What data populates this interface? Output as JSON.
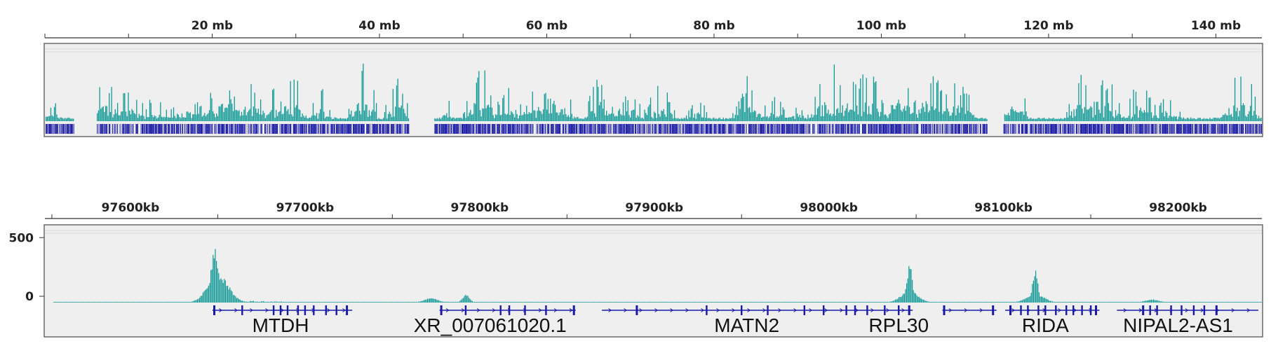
{
  "colors": {
    "signal": "#139a96",
    "gene": "#1a1aa6",
    "panel_bg": "#efefef",
    "axis": "#333333"
  },
  "chart_data": [
    {
      "type": "area",
      "view": "chromosome-overview",
      "x_unit": "mb",
      "xlim": [
        0,
        145.5
      ],
      "tick_labels": [
        "20 mb",
        "40 mb",
        "60 mb",
        "80 mb",
        "100 mb",
        "120 mb",
        "140 mb"
      ],
      "tick_values": [
        20,
        40,
        60,
        80,
        100,
        120,
        140
      ],
      "minor_tick_values": [
        0,
        10,
        30,
        50,
        70,
        90,
        110,
        130
      ],
      "gaps_mb": [
        [
          3.5,
          6.2
        ],
        [
          43.5,
          46.5
        ],
        [
          112.6,
          114.6
        ]
      ],
      "clusters": [
        [
          1,
          3,
          0.35
        ],
        [
          7,
          4,
          0.8
        ],
        [
          10,
          5,
          0.55
        ],
        [
          13,
          4,
          0.4
        ],
        [
          17,
          5,
          0.5
        ],
        [
          21,
          5,
          0.75
        ],
        [
          24,
          5,
          0.85
        ],
        [
          27,
          4,
          0.65
        ],
        [
          29.5,
          4,
          0.9
        ],
        [
          33,
          3,
          0.55
        ],
        [
          38,
          4,
          0.95
        ],
        [
          42,
          3,
          0.9
        ],
        [
          48,
          2,
          0.45
        ],
        [
          52,
          5,
          0.95
        ],
        [
          55.5,
          4,
          0.65
        ],
        [
          59,
          5,
          0.65
        ],
        [
          62,
          4,
          0.55
        ],
        [
          67,
          5,
          0.95
        ],
        [
          70,
          4,
          0.55
        ],
        [
          73.5,
          4,
          0.65
        ],
        [
          78,
          3,
          0.4
        ],
        [
          84,
          4,
          0.75
        ],
        [
          87,
          4,
          0.45
        ],
        [
          90,
          3,
          0.35
        ],
        [
          94,
          6,
          0.95
        ],
        [
          98,
          6,
          0.9
        ],
        [
          102,
          5,
          0.9
        ],
        [
          105.5,
          5,
          0.95
        ],
        [
          109,
          5,
          0.75
        ],
        [
          116,
          4,
          0.75
        ],
        [
          124,
          4,
          0.95
        ],
        [
          127,
          4,
          0.8
        ],
        [
          131,
          4,
          0.75
        ],
        [
          134,
          4,
          0.5
        ],
        [
          143,
          5,
          0.95
        ]
      ]
    },
    {
      "type": "area",
      "view": "locus-zoom",
      "x_unit": "kb",
      "xlim": [
        97551,
        98248
      ],
      "tick_labels": [
        "97600kb",
        "97700kb",
        "97800kb",
        "97900kb",
        "98000kb",
        "98100kb",
        "98200kb"
      ],
      "tick_values": [
        97600,
        97700,
        97800,
        97900,
        98000,
        98100,
        98200
      ],
      "minor_tick_values": [
        97555,
        97650,
        97750,
        97850,
        97950,
        98050,
        98150
      ],
      "y_tick_labels": [
        "500",
        "0"
      ],
      "y_tick_values": [
        500,
        0
      ],
      "ylim": [
        0,
        550
      ],
      "peaks": [
        {
          "x": 97648,
          "height": 425,
          "width": 2.2
        },
        {
          "x": 97650,
          "height": 220,
          "width": 6
        },
        {
          "x": 97772,
          "height": 35,
          "width": 4
        },
        {
          "x": 97792,
          "height": 65,
          "width": 2
        },
        {
          "x": 98046,
          "height": 300,
          "width": 1.6
        },
        {
          "x": 98046,
          "height": 90,
          "width": 5
        },
        {
          "x": 98118,
          "height": 260,
          "width": 1.6
        },
        {
          "x": 98118,
          "height": 70,
          "width": 5
        },
        {
          "x": 98185,
          "height": 25,
          "width": 4
        }
      ],
      "genes": [
        {
          "label": "MTDH",
          "start": 97647,
          "end": 97727,
          "exons": [
            97648,
            97664,
            97682,
            97686,
            97690,
            97696,
            97700,
            97705,
            97712,
            97718,
            97724
          ],
          "label_x": 97686
        },
        {
          "label": "XR_007061020.1",
          "start": 97777,
          "end": 97855,
          "exons": [
            97778,
            97792,
            97812,
            97817,
            97826,
            97838,
            97854
          ],
          "label_x": 97806
        },
        {
          "label": "MATN2",
          "start": 97870,
          "end": 98048,
          "exons": [
            97890,
            97930,
            97950,
            97965,
            97986,
            97997,
            98010,
            98015,
            98022,
            98032,
            98040,
            98046
          ],
          "label_x": 97953
        },
        {
          "label": "RPL30",
          "start": 98065,
          "end": 98096,
          "exons": [
            98066,
            98094
          ],
          "label_x": 98040
        },
        {
          "label": "RIDA",
          "start": 98101,
          "end": 98155,
          "exons": [
            98104,
            98110,
            98114,
            98120,
            98124,
            98130,
            98136,
            98140,
            98145,
            98150,
            98153
          ],
          "label_x": 98124
        },
        {
          "label": "NIPAL2-AS1",
          "start": 98165,
          "end": 98246,
          "exons": [
            98180,
            98184,
            98188,
            98196,
            98202,
            98209,
            98215,
            98222
          ],
          "label_x": 98200
        }
      ]
    }
  ]
}
